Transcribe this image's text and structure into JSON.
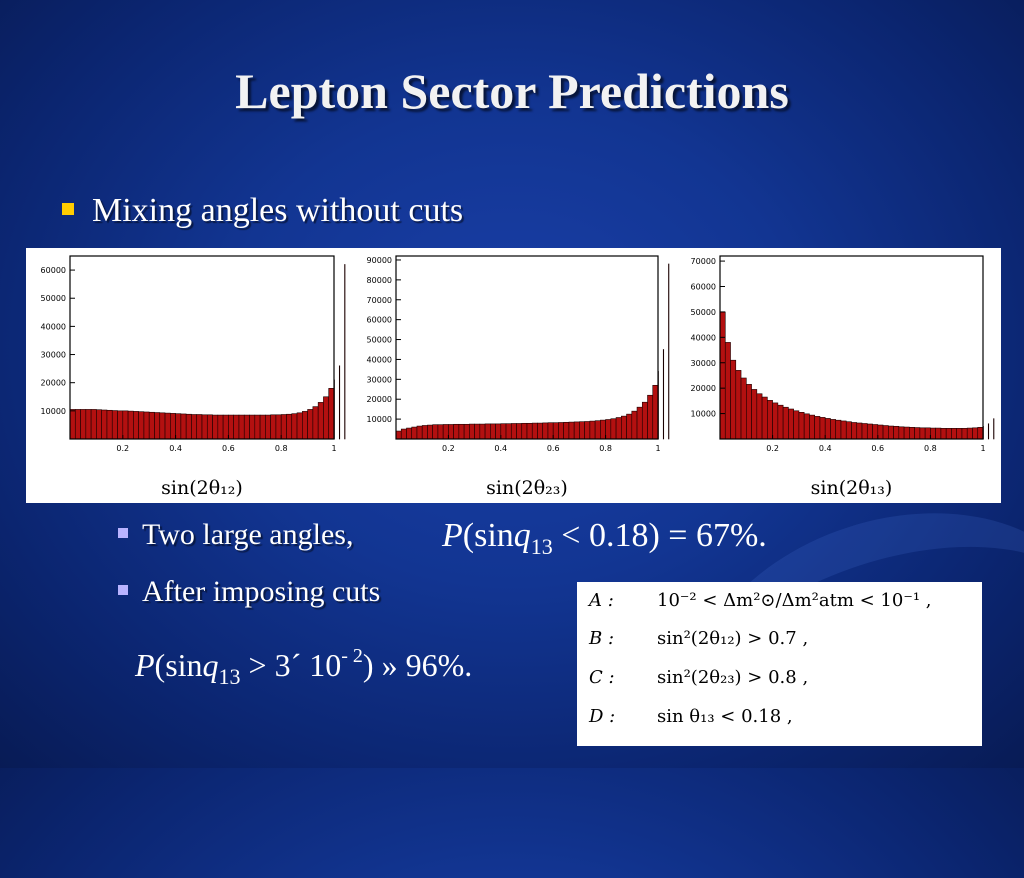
{
  "slide": {
    "title": "Lepton Sector Predictions",
    "bullet1": "Mixing angles without cuts",
    "sub1": "Two large angles,",
    "sub2": "After imposing cuts",
    "formula1": {
      "lhs_P": "P",
      "open": "(sin",
      "q": "q",
      "sub": "13",
      "rhs": " < 0.18) = 67%."
    },
    "formula2": {
      "lhs_P": "P",
      "open": "(sin",
      "q": "q",
      "sub": "13",
      "mid": " > 3´ 10",
      "exp": "- 2",
      "rhs": ") » 96%."
    }
  },
  "cuts": [
    {
      "label": "A :",
      "text": "10⁻² < Δm²⊙/Δm²atm < 10⁻¹ ,"
    },
    {
      "label": "B :",
      "text": "sin²(2θ₁₂) > 0.7 ,"
    },
    {
      "label": "C :",
      "text": "sin²(2θ₂₃) > 0.8 ,"
    },
    {
      "label": "D :",
      "text": "sin θ₁₃ < 0.18 ,"
    }
  ],
  "colors": {
    "bar_fill": "#b31010",
    "bar_edge": "#1a0000",
    "bullet_main": "#ffcc00",
    "bullet_sub": "#b9b3ff"
  },
  "chart_data": [
    {
      "type": "bar",
      "xlabel": "sin(2θ₁₂)",
      "xticks": [
        "0.2",
        "0.4",
        "0.6",
        "0.8",
        "1"
      ],
      "yticks": [
        "10000",
        "20000",
        "30000",
        "40000",
        "50000",
        "60000"
      ],
      "xlim": [
        0,
        1
      ],
      "ylim": [
        0,
        65000
      ],
      "grid": false,
      "bin_width": 0.02,
      "values": [
        10500,
        10500,
        10500,
        10500,
        10500,
        10400,
        10300,
        10200,
        10100,
        10000,
        10000,
        9900,
        9800,
        9700,
        9600,
        9500,
        9400,
        9300,
        9200,
        9100,
        9000,
        8900,
        8800,
        8700,
        8700,
        8600,
        8600,
        8500,
        8500,
        8500,
        8500,
        8500,
        8500,
        8500,
        8500,
        8500,
        8500,
        8500,
        8600,
        8600,
        8700,
        8800,
        9000,
        9300,
        9800,
        10500,
        11500,
        13000,
        15000,
        18000,
        21000,
        26000,
        62000
      ]
    },
    {
      "type": "bar",
      "xlabel": "sin(2θ₂₃)",
      "xticks": [
        "0.2",
        "0.4",
        "0.6",
        "0.8",
        "1"
      ],
      "yticks": [
        "10000",
        "20000",
        "30000",
        "40000",
        "50000",
        "60000",
        "70000",
        "80000",
        "90000"
      ],
      "xlim": [
        0,
        1
      ],
      "ylim": [
        0,
        92000
      ],
      "grid": false,
      "bin_width": 0.02,
      "values": [
        4000,
        5000,
        5500,
        6000,
        6500,
        6800,
        7000,
        7200,
        7200,
        7300,
        7300,
        7400,
        7400,
        7400,
        7500,
        7500,
        7500,
        7600,
        7600,
        7600,
        7700,
        7700,
        7800,
        7800,
        7900,
        7900,
        8000,
        8000,
        8100,
        8200,
        8200,
        8300,
        8400,
        8500,
        8600,
        8700,
        8800,
        9000,
        9200,
        9500,
        9800,
        10200,
        10800,
        11500,
        12500,
        14000,
        16000,
        18500,
        22000,
        27000,
        34000,
        45000,
        88000
      ]
    },
    {
      "type": "bar",
      "xlabel": "sin(2θ₁₃)",
      "xticks": [
        "0.2",
        "0.4",
        "0.6",
        "0.8",
        "1"
      ],
      "yticks": [
        "10000",
        "20000",
        "30000",
        "40000",
        "50000",
        "60000",
        "70000"
      ],
      "xlim": [
        0,
        1
      ],
      "ylim": [
        0,
        72000
      ],
      "grid": false,
      "bin_width": 0.02,
      "values": [
        50000,
        38000,
        31000,
        27000,
        24000,
        21500,
        19500,
        17800,
        16500,
        15200,
        14200,
        13300,
        12500,
        11800,
        11100,
        10500,
        9900,
        9400,
        8900,
        8500,
        8100,
        7700,
        7400,
        7100,
        6800,
        6500,
        6300,
        6100,
        5900,
        5700,
        5500,
        5300,
        5100,
        5000,
        4800,
        4700,
        4600,
        4500,
        4400,
        4400,
        4300,
        4300,
        4200,
        4200,
        4200,
        4200,
        4200,
        4300,
        4400,
        4600,
        5000,
        6000,
        8000
      ]
    }
  ]
}
